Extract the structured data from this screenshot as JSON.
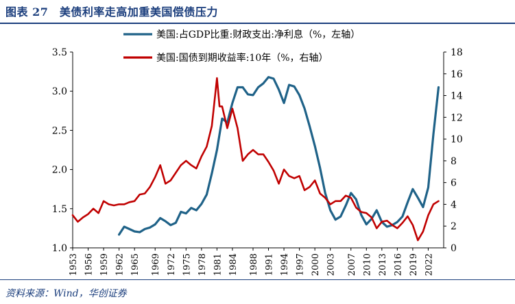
{
  "header": {
    "title": "图表 27　美债利率走高加重美国偿债压力"
  },
  "footer": {
    "source": "资料来源：Wind，华创证券"
  },
  "colors": {
    "accent": "#1a3d7c",
    "series_blue": "#1f6288",
    "series_red": "#c00000"
  },
  "chart_data": {
    "type": "line",
    "legend_position": "top-center",
    "grid": false,
    "x_ticks": [
      "1953",
      "1956",
      "1959",
      "1962",
      "1965",
      "1969",
      "1972",
      "1975",
      "1978",
      "1981",
      "1984",
      "1988",
      "1991",
      "1994",
      "1997",
      "2000",
      "2003",
      "2007",
      "2010",
      "2013",
      "2016",
      "2019",
      "2022"
    ],
    "xlim": [
      1953,
      2025
    ],
    "y_left": {
      "lim": [
        1.0,
        3.5
      ],
      "ticks": [
        "1.0",
        "1.5",
        "2.0",
        "2.5",
        "3.0",
        "3.5"
      ]
    },
    "y_right": {
      "lim": [
        0,
        18
      ],
      "ticks": [
        "0",
        "2",
        "4",
        "6",
        "8",
        "10",
        "12",
        "14",
        "16",
        "18"
      ]
    },
    "series": [
      {
        "name": "美国:占GDP比重:财政支出:净利息（%，左轴）",
        "axis": "left",
        "color": "#1f6288",
        "points": [
          [
            1962,
            1.17
          ],
          [
            1963,
            1.27
          ],
          [
            1964,
            1.24
          ],
          [
            1965,
            1.21
          ],
          [
            1966,
            1.2
          ],
          [
            1967,
            1.24
          ],
          [
            1968,
            1.26
          ],
          [
            1969,
            1.3
          ],
          [
            1970,
            1.38
          ],
          [
            1971,
            1.34
          ],
          [
            1972,
            1.29
          ],
          [
            1973,
            1.32
          ],
          [
            1974,
            1.46
          ],
          [
            1975,
            1.44
          ],
          [
            1976,
            1.51
          ],
          [
            1977,
            1.48
          ],
          [
            1978,
            1.56
          ],
          [
            1979,
            1.68
          ],
          [
            1980,
            1.95
          ],
          [
            1981,
            2.25
          ],
          [
            1982,
            2.65
          ],
          [
            1983,
            2.6
          ],
          [
            1984,
            2.85
          ],
          [
            1985,
            3.05
          ],
          [
            1986,
            3.05
          ],
          [
            1987,
            2.96
          ],
          [
            1988,
            2.95
          ],
          [
            1989,
            3.05
          ],
          [
            1990,
            3.1
          ],
          [
            1991,
            3.18
          ],
          [
            1992,
            3.16
          ],
          [
            1993,
            3.02
          ],
          [
            1994,
            2.85
          ],
          [
            1995,
            3.08
          ],
          [
            1996,
            3.06
          ],
          [
            1997,
            2.95
          ],
          [
            1998,
            2.78
          ],
          [
            1999,
            2.55
          ],
          [
            2000,
            2.3
          ],
          [
            2001,
            2.02
          ],
          [
            2002,
            1.7
          ],
          [
            2003,
            1.48
          ],
          [
            2004,
            1.36
          ],
          [
            2005,
            1.4
          ],
          [
            2006,
            1.54
          ],
          [
            2007,
            1.7
          ],
          [
            2008,
            1.62
          ],
          [
            2009,
            1.42
          ],
          [
            2010,
            1.3
          ],
          [
            2011,
            1.37
          ],
          [
            2012,
            1.48
          ],
          [
            2013,
            1.33
          ],
          [
            2014,
            1.27
          ],
          [
            2015,
            1.29
          ],
          [
            2016,
            1.33
          ],
          [
            2017,
            1.4
          ],
          [
            2018,
            1.58
          ],
          [
            2019,
            1.75
          ],
          [
            2020,
            1.64
          ],
          [
            2021,
            1.52
          ],
          [
            2022,
            1.77
          ],
          [
            2023,
            2.45
          ],
          [
            2024,
            3.05
          ]
        ]
      },
      {
        "name": "美国:国债到期收益率:10年（%，右轴）",
        "axis": "right",
        "color": "#c00000",
        "points": [
          [
            1953,
            3.0
          ],
          [
            1954,
            2.4
          ],
          [
            1955,
            2.8
          ],
          [
            1956,
            3.1
          ],
          [
            1957,
            3.6
          ],
          [
            1958,
            3.2
          ],
          [
            1959,
            4.3
          ],
          [
            1960,
            4.0
          ],
          [
            1961,
            3.9
          ],
          [
            1962,
            4.0
          ],
          [
            1963,
            4.0
          ],
          [
            1964,
            4.2
          ],
          [
            1965,
            4.3
          ],
          [
            1966,
            4.9
          ],
          [
            1967,
            5.0
          ],
          [
            1968,
            5.6
          ],
          [
            1969,
            6.5
          ],
          [
            1970,
            7.6
          ],
          [
            1971,
            5.9
          ],
          [
            1972,
            6.2
          ],
          [
            1973,
            6.9
          ],
          [
            1974,
            7.6
          ],
          [
            1975,
            8.0
          ],
          [
            1976,
            7.6
          ],
          [
            1977,
            7.3
          ],
          [
            1978,
            8.4
          ],
          [
            1979,
            9.3
          ],
          [
            1980,
            11.2
          ],
          [
            1981,
            15.6
          ],
          [
            1981.5,
            13.0
          ],
          [
            1982,
            13.0
          ],
          [
            1983,
            11.0
          ],
          [
            1984,
            12.8
          ],
          [
            1985,
            11.0
          ],
          [
            1986,
            8.0
          ],
          [
            1987,
            8.6
          ],
          [
            1988,
            9.0
          ],
          [
            1989,
            8.6
          ],
          [
            1990,
            8.6
          ],
          [
            1991,
            7.9
          ],
          [
            1992,
            7.1
          ],
          [
            1993,
            5.9
          ],
          [
            1994,
            7.2
          ],
          [
            1995,
            6.6
          ],
          [
            1996,
            6.4
          ],
          [
            1997,
            6.6
          ],
          [
            1998,
            5.3
          ],
          [
            1999,
            5.6
          ],
          [
            2000,
            6.2
          ],
          [
            2001,
            5.0
          ],
          [
            2002,
            4.6
          ],
          [
            2003,
            4.0
          ],
          [
            2004,
            4.3
          ],
          [
            2005,
            4.3
          ],
          [
            2006,
            4.8
          ],
          [
            2007,
            4.6
          ],
          [
            2008,
            3.7
          ],
          [
            2009,
            3.3
          ],
          [
            2010,
            3.2
          ],
          [
            2011,
            2.8
          ],
          [
            2012,
            1.8
          ],
          [
            2013,
            2.4
          ],
          [
            2014,
            2.5
          ],
          [
            2015,
            2.1
          ],
          [
            2016,
            1.8
          ],
          [
            2017,
            2.3
          ],
          [
            2018,
            2.9
          ],
          [
            2019,
            2.1
          ],
          [
            2020,
            0.7
          ],
          [
            2021,
            1.5
          ],
          [
            2022,
            3.0
          ],
          [
            2023,
            4.0
          ],
          [
            2024,
            4.3
          ]
        ]
      }
    ]
  }
}
